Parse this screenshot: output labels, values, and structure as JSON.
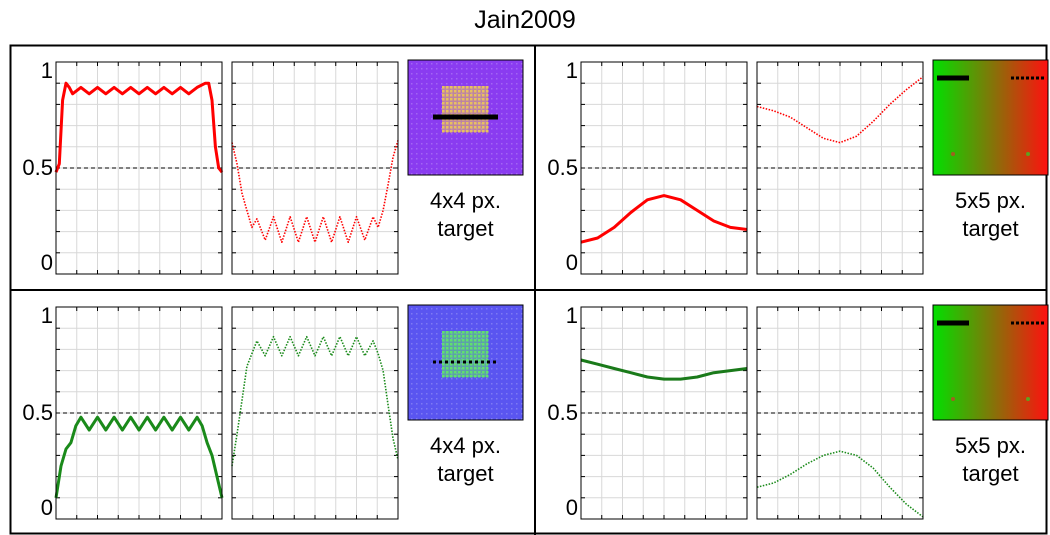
{
  "title": "Jain2009",
  "chart_data": [
    {
      "type": "line",
      "panel": "top-left",
      "target_caption_line1": "4x4 px.",
      "target_caption_line2": "target",
      "yticks": [
        "1",
        "0.5",
        "0"
      ],
      "ylim": [
        0,
        1
      ],
      "reference_line": 0.5,
      "solid_series": {
        "color": "#ff0000",
        "x": [
          0.0,
          0.02,
          0.04,
          0.06,
          0.08,
          0.1,
          0.15,
          0.2,
          0.25,
          0.3,
          0.35,
          0.4,
          0.45,
          0.5,
          0.55,
          0.6,
          0.65,
          0.7,
          0.75,
          0.8,
          0.85,
          0.9,
          0.92,
          0.94,
          0.96,
          0.98,
          1.0
        ],
        "y": [
          0.48,
          0.52,
          0.82,
          0.9,
          0.88,
          0.85,
          0.88,
          0.85,
          0.88,
          0.85,
          0.88,
          0.85,
          0.88,
          0.85,
          0.88,
          0.85,
          0.88,
          0.85,
          0.88,
          0.85,
          0.88,
          0.9,
          0.9,
          0.82,
          0.6,
          0.5,
          0.48
        ]
      },
      "dotted_series": {
        "color": "#ff0000",
        "x": [
          0.0,
          0.03,
          0.06,
          0.09,
          0.12,
          0.15,
          0.2,
          0.25,
          0.3,
          0.35,
          0.4,
          0.45,
          0.5,
          0.55,
          0.6,
          0.65,
          0.7,
          0.75,
          0.8,
          0.85,
          0.88,
          0.91,
          0.94,
          0.97,
          1.0
        ],
        "y": [
          0.62,
          0.52,
          0.38,
          0.3,
          0.22,
          0.26,
          0.16,
          0.27,
          0.15,
          0.27,
          0.15,
          0.27,
          0.15,
          0.27,
          0.15,
          0.27,
          0.15,
          0.27,
          0.16,
          0.27,
          0.22,
          0.3,
          0.42,
          0.55,
          0.63
        ]
      },
      "target": {
        "background": "#8a3cf0",
        "pattern": "#e8c060",
        "line": "solid"
      }
    },
    {
      "type": "line",
      "panel": "top-right",
      "target_caption_line1": "5x5 px.",
      "target_caption_line2": "target",
      "yticks": [
        "1",
        "0.5",
        "0"
      ],
      "ylim": [
        0,
        1
      ],
      "reference_line": 0.5,
      "solid_series": {
        "color": "#ff0000",
        "x": [
          0.0,
          0.1,
          0.2,
          0.3,
          0.4,
          0.5,
          0.6,
          0.7,
          0.8,
          0.9,
          1.0
        ],
        "y": [
          0.15,
          0.17,
          0.22,
          0.29,
          0.35,
          0.37,
          0.35,
          0.3,
          0.25,
          0.22,
          0.21
        ]
      },
      "dotted_series": {
        "color": "#ff0000",
        "x": [
          0.0,
          0.1,
          0.2,
          0.3,
          0.4,
          0.5,
          0.6,
          0.7,
          0.8,
          0.9,
          1.0
        ],
        "y": [
          0.79,
          0.77,
          0.74,
          0.69,
          0.64,
          0.62,
          0.65,
          0.72,
          0.8,
          0.87,
          0.93
        ]
      },
      "target": {
        "background_left": "#00e000",
        "background_right": "#ff1010",
        "line": "solid-and-dotted"
      }
    },
    {
      "type": "line",
      "panel": "bottom-left",
      "target_caption_line1": "4x4 px.",
      "target_caption_line2": "target",
      "yticks": [
        "1",
        "0.5",
        "0"
      ],
      "ylim": [
        0,
        1
      ],
      "reference_line": 0.5,
      "solid_series": {
        "color": "#1a8a1a",
        "x": [
          0.0,
          0.03,
          0.06,
          0.09,
          0.12,
          0.15,
          0.2,
          0.25,
          0.3,
          0.35,
          0.4,
          0.45,
          0.5,
          0.55,
          0.6,
          0.65,
          0.7,
          0.75,
          0.8,
          0.85,
          0.88,
          0.91,
          0.94,
          0.97,
          1.0
        ],
        "y": [
          0.1,
          0.25,
          0.33,
          0.36,
          0.44,
          0.48,
          0.42,
          0.48,
          0.42,
          0.48,
          0.42,
          0.48,
          0.42,
          0.48,
          0.42,
          0.48,
          0.42,
          0.48,
          0.42,
          0.48,
          0.44,
          0.36,
          0.3,
          0.2,
          0.1
        ]
      },
      "dotted_series": {
        "color": "#1a8a1a",
        "x": [
          0.0,
          0.03,
          0.06,
          0.09,
          0.12,
          0.15,
          0.2,
          0.25,
          0.3,
          0.35,
          0.4,
          0.45,
          0.5,
          0.55,
          0.6,
          0.65,
          0.7,
          0.75,
          0.8,
          0.85,
          0.88,
          0.91,
          0.94,
          0.97,
          1.0
        ],
        "y": [
          0.25,
          0.4,
          0.56,
          0.72,
          0.78,
          0.84,
          0.77,
          0.86,
          0.77,
          0.86,
          0.77,
          0.86,
          0.77,
          0.86,
          0.77,
          0.86,
          0.77,
          0.86,
          0.77,
          0.84,
          0.78,
          0.7,
          0.54,
          0.38,
          0.28
        ]
      },
      "target": {
        "background": "#5a55f0",
        "pattern": "#60e070",
        "line": "dotted"
      }
    },
    {
      "type": "line",
      "panel": "bottom-right",
      "target_caption_line1": "5x5 px.",
      "target_caption_line2": "target",
      "yticks": [
        "1",
        "0.5",
        "0"
      ],
      "ylim": [
        0,
        1
      ],
      "reference_line": 0.5,
      "solid_series": {
        "color": "#1a7a1a",
        "x": [
          0.0,
          0.1,
          0.2,
          0.3,
          0.4,
          0.5,
          0.6,
          0.7,
          0.8,
          0.9,
          1.0
        ],
        "y": [
          0.75,
          0.73,
          0.71,
          0.69,
          0.67,
          0.66,
          0.66,
          0.67,
          0.69,
          0.7,
          0.71
        ]
      },
      "dotted_series": {
        "color": "#1a8a1a",
        "x": [
          0.0,
          0.1,
          0.2,
          0.3,
          0.4,
          0.5,
          0.6,
          0.7,
          0.8,
          0.9,
          1.0
        ],
        "y": [
          0.15,
          0.17,
          0.21,
          0.26,
          0.3,
          0.32,
          0.3,
          0.24,
          0.15,
          0.07,
          0.01
        ]
      },
      "target": {
        "background_left": "#00e000",
        "background_right": "#ff1010",
        "line": "solid-and-dotted"
      }
    }
  ]
}
